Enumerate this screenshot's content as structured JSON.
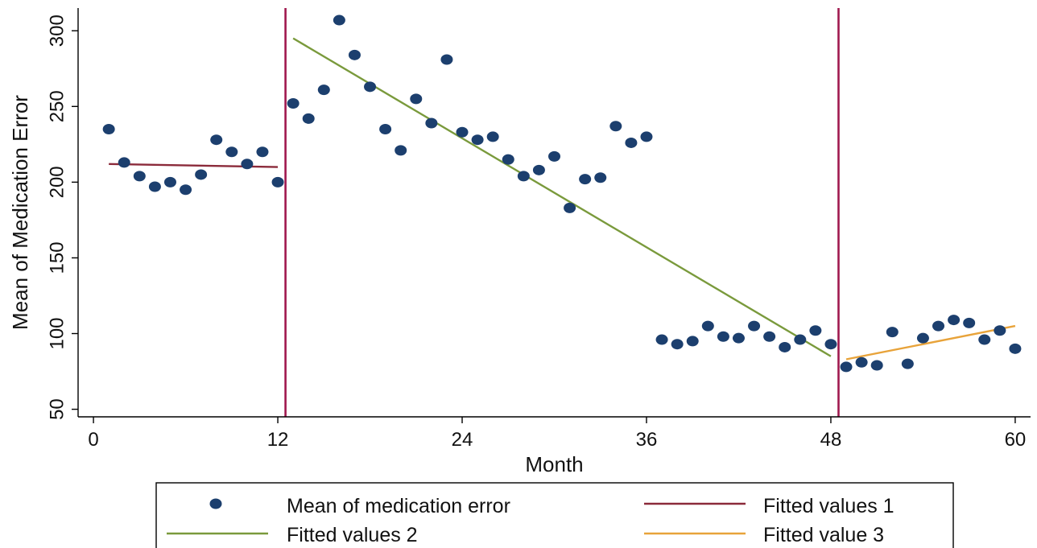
{
  "chart_data": {
    "type": "scatter",
    "xlabel": "Month",
    "ylabel": "Mean of Medication Error",
    "xlim": [
      -1,
      61
    ],
    "ylim": [
      45,
      315
    ],
    "xticks": [
      0,
      12,
      24,
      36,
      48,
      60
    ],
    "yticks": [
      50,
      100,
      150,
      200,
      250,
      300
    ],
    "intervention_lines": [
      12.5,
      48.5
    ],
    "colors": {
      "points": "#1c3f6e",
      "vline": "#a0194f",
      "fit1": "#8b2a3a",
      "fit2": "#7a9a3c",
      "fit3": "#e8a33a"
    },
    "series": [
      {
        "name": "Mean of medication error",
        "kind": "scatter",
        "x": [
          1,
          2,
          3,
          4,
          5,
          6,
          7,
          8,
          9,
          10,
          11,
          12,
          13,
          14,
          15,
          16,
          17,
          18,
          19,
          20,
          21,
          22,
          23,
          24,
          25,
          26,
          27,
          28,
          29,
          30,
          31,
          32,
          33,
          34,
          35,
          36,
          37,
          38,
          39,
          40,
          41,
          42,
          43,
          44,
          45,
          46,
          47,
          48,
          49,
          50,
          51,
          52,
          53,
          54,
          55,
          56,
          57,
          58,
          59,
          60
        ],
        "y": [
          235,
          213,
          204,
          197,
          200,
          195,
          205,
          228,
          220,
          212,
          220,
          200,
          252,
          242,
          261,
          307,
          284,
          263,
          235,
          221,
          255,
          239,
          281,
          233,
          228,
          230,
          215,
          204,
          208,
          217,
          183,
          202,
          203,
          237,
          226,
          230,
          96,
          93,
          95,
          105,
          98,
          97,
          105,
          98,
          91,
          96,
          102,
          93,
          78,
          81,
          79,
          101,
          80,
          97,
          105,
          109,
          107,
          96,
          102,
          90
        ]
      },
      {
        "name": "Fitted values 1",
        "kind": "line",
        "x": [
          1,
          12
        ],
        "y": [
          212,
          210
        ]
      },
      {
        "name": "Fitted values 2",
        "kind": "line",
        "x": [
          13,
          48
        ],
        "y": [
          295,
          85
        ]
      },
      {
        "name": "Fitted value 3",
        "kind": "line",
        "x": [
          49,
          60
        ],
        "y": [
          83,
          105
        ]
      }
    ],
    "legend": {
      "position": "bottom",
      "items": [
        {
          "label": "Mean of medication error",
          "kind": "marker"
        },
        {
          "label": "Fitted values 1",
          "kind": "line"
        },
        {
          "label": "Fitted values 2",
          "kind": "line"
        },
        {
          "label": "Fitted value 3",
          "kind": "line"
        }
      ]
    }
  }
}
